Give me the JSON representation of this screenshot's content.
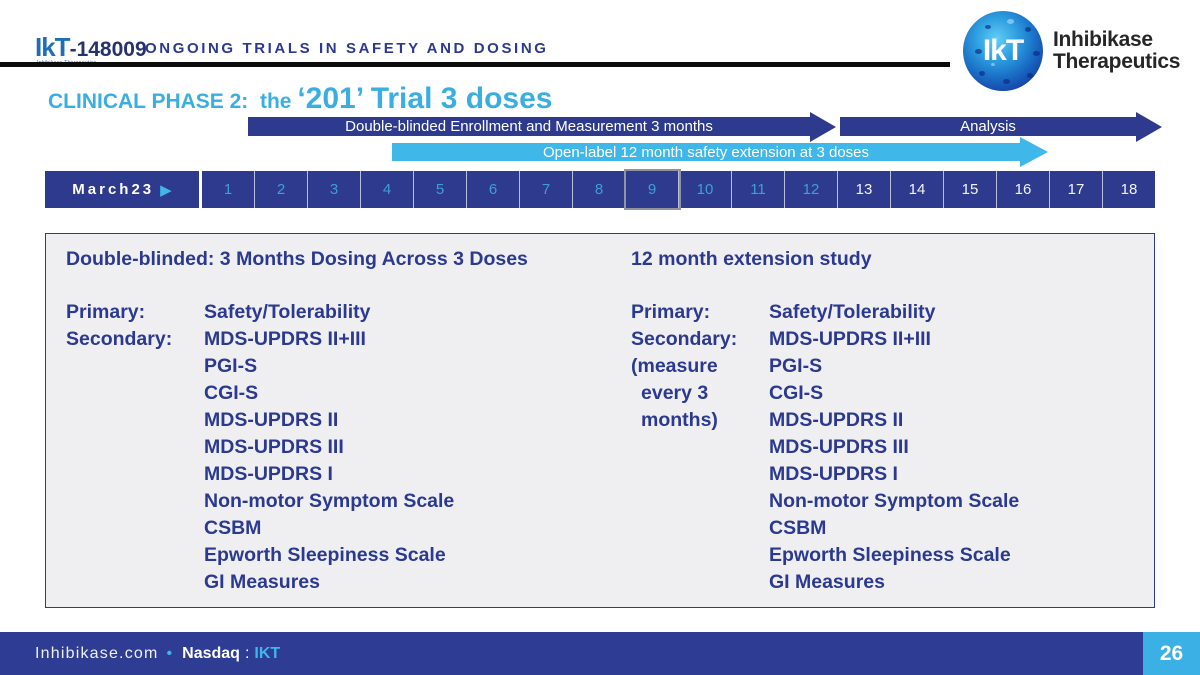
{
  "header": {
    "product_logo": {
      "ikt": "IkT",
      "code": "-148009",
      "subtext": "Inhibikase Therapeutics"
    },
    "section_title": "ONGOING TRIALS IN SAFETY AND DOSING"
  },
  "brand": {
    "monogram": "IkT",
    "name_line1": "Inhibikase",
    "name_line2": "Therapeutics"
  },
  "slide_title": {
    "prefix": "CLINICAL PHASE 2:  the ",
    "emphasis": "‘201’ Trial 3 doses"
  },
  "arrows": {
    "double_blinded": "Double-blinded Enrollment and Measurement 3 months",
    "analysis": "Analysis",
    "open_label": "Open-label 12 month safety extension at 3 doses"
  },
  "timeline": {
    "start_label": "March23",
    "play_icon": "▶",
    "months": [
      "1",
      "2",
      "3",
      "4",
      "5",
      "6",
      "7",
      "8",
      "9",
      "10",
      "11",
      "12",
      "13",
      "14",
      "15",
      "16",
      "17",
      "18"
    ],
    "cyan_count": 12,
    "highlighted_month": 9
  },
  "panel": {
    "left": {
      "title": "Double-blinded: 3 Months Dosing Across 3 Doses",
      "rows": [
        {
          "label": "Primary:",
          "value": "Safety/Tolerability"
        },
        {
          "label": "Secondary:",
          "value": "MDS-UPDRS II+III"
        },
        {
          "label": "",
          "value": "PGI-S"
        },
        {
          "label": "",
          "value": "CGI-S"
        },
        {
          "label": "",
          "value": "MDS-UPDRS II"
        },
        {
          "label": "",
          "value": "MDS-UPDRS III"
        },
        {
          "label": "",
          "value": "MDS-UPDRS I"
        },
        {
          "label": "",
          "value": "Non-motor Symptom Scale"
        },
        {
          "label": "",
          "value": "CSBM"
        },
        {
          "label": "",
          "value": "Epworth Sleepiness Scale"
        },
        {
          "label": "",
          "value": "GI Measures"
        }
      ]
    },
    "right": {
      "title": "12 month extension study",
      "rows": [
        {
          "label": "Primary:",
          "value": "Safety/Tolerability"
        },
        {
          "label": "Secondary:",
          "value": "MDS-UPDRS II+III"
        },
        {
          "label": "(measure",
          "value": "PGI-S"
        },
        {
          "label": "every 3",
          "value": "CGI-S",
          "indent": true
        },
        {
          "label": "months)",
          "value": "MDS-UPDRS II",
          "indent": true
        },
        {
          "label": "",
          "value": "MDS-UPDRS III"
        },
        {
          "label": "",
          "value": "MDS-UPDRS I"
        },
        {
          "label": "",
          "value": "Non-motor Symptom Scale"
        },
        {
          "label": "",
          "value": "CSBM"
        },
        {
          "label": "",
          "value": "Epworth Sleepiness Scale"
        },
        {
          "label": "",
          "value": "GI Measures"
        }
      ]
    }
  },
  "footer": {
    "site": "Inhibikase.com",
    "bullet": "•",
    "nasdaq_label": "Nasdaq",
    "colon": ":",
    "ticker": "IKT",
    "page_number": "26"
  },
  "colors": {
    "navy": "#2B3990",
    "bar_navy": "#2E3A8E",
    "title_cyan": "#3AAEE0",
    "arrow_cyan": "#3FB7E9",
    "footer_blue": "#2F3C93",
    "page_box_cyan": "#3AB0E4",
    "panel_bg": "#EFEFF1"
  }
}
